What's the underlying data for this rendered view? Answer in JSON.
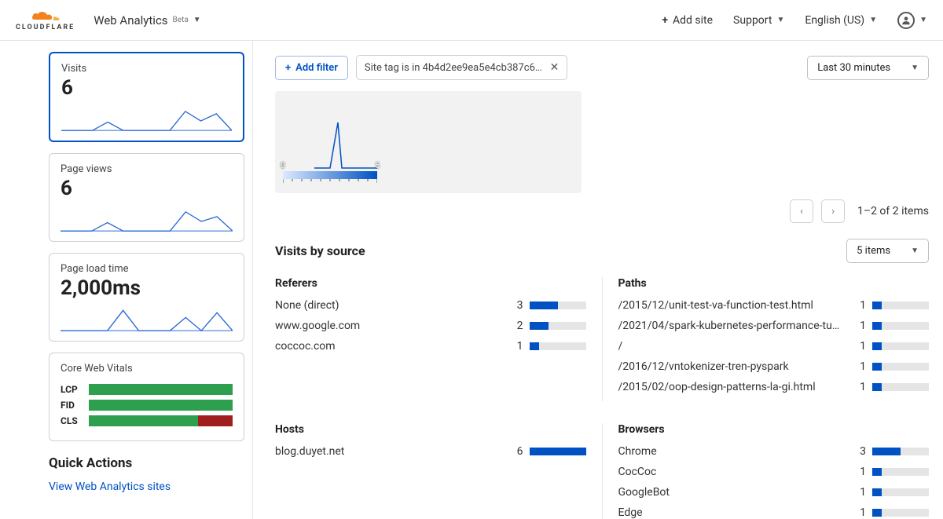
{
  "brand": {
    "name": "CLOUDFLARE",
    "accent": "#f48120"
  },
  "product": {
    "name": "Web Analytics",
    "badge": "Beta"
  },
  "topbar": {
    "add_site": "Add site",
    "support": "Support",
    "language": "English (US)"
  },
  "sidebar": {
    "cards": {
      "visits": {
        "label": "Visits",
        "value": "6",
        "spark": [
          0,
          0,
          0,
          0.35,
          0,
          0,
          0,
          0,
          0.8,
          0.4,
          0.7,
          0
        ],
        "color": "#2e6bd6"
      },
      "page_views": {
        "label": "Page views",
        "value": "6",
        "spark": [
          0,
          0,
          0,
          0.35,
          0,
          0,
          0,
          0,
          0.8,
          0.4,
          0.6,
          0
        ],
        "color": "#2e6bd6"
      },
      "page_load": {
        "label": "Page load time",
        "value": "2,000ms",
        "spark": [
          0,
          0,
          0,
          0,
          0.85,
          0,
          0,
          0,
          0.55,
          0,
          0.75,
          0
        ],
        "color": "#2e6bd6"
      }
    },
    "cwv": {
      "title": "Core Web Vitals",
      "rows": [
        {
          "label": "LCP",
          "good_pct": 100,
          "bad_pct": 0
        },
        {
          "label": "FID",
          "good_pct": 100,
          "bad_pct": 0
        },
        {
          "label": "CLS",
          "good_pct": 76,
          "bad_pct": 24
        }
      ],
      "good_color": "#2e9e4f",
      "bad_color": "#a01e1e"
    },
    "quick_actions": {
      "title": "Quick Actions",
      "links": [
        "View Web Analytics sites"
      ]
    }
  },
  "toolbar": {
    "add_filter": "Add filter",
    "active_filter": "Site tag is in 4b4d2ee9ea5e4cb387c6…",
    "range": "Last 30 minutes"
  },
  "heat": {
    "min": 0,
    "max": 5,
    "gradient_from": "#dceaff",
    "gradient_to": "#0051c3"
  },
  "pager": {
    "text": "1–2 of 2 items"
  },
  "visits_by_source": {
    "title": "Visits by source",
    "items_dd": "5 items",
    "bar_color": "#0051c3",
    "bar_bg": "#e5e5e5",
    "referers": {
      "title": "Referers",
      "max": 6,
      "rows": [
        {
          "label": "None (direct)",
          "value": 3
        },
        {
          "label": "www.google.com",
          "value": 2
        },
        {
          "label": "coccoc.com",
          "value": 1
        }
      ]
    },
    "paths": {
      "title": "Paths",
      "max": 6,
      "rows": [
        {
          "label": "/2015/12/unit-test-va-function-test.html",
          "value": 1
        },
        {
          "label": "/2021/04/spark-kubernetes-performance-tu…",
          "value": 1
        },
        {
          "label": "/",
          "value": 1
        },
        {
          "label": "/2016/12/vntokenizer-tren-pyspark",
          "value": 1
        },
        {
          "label": "/2015/02/oop-design-patterns-la-gi.html",
          "value": 1
        }
      ]
    },
    "hosts": {
      "title": "Hosts",
      "max": 6,
      "rows": [
        {
          "label": "blog.duyet.net",
          "value": 6
        }
      ]
    },
    "browsers": {
      "title": "Browsers",
      "max": 6,
      "rows": [
        {
          "label": "Chrome",
          "value": 3
        },
        {
          "label": "CocCoc",
          "value": 1
        },
        {
          "label": "GoogleBot",
          "value": 1
        },
        {
          "label": "Edge",
          "value": 1
        }
      ]
    }
  }
}
